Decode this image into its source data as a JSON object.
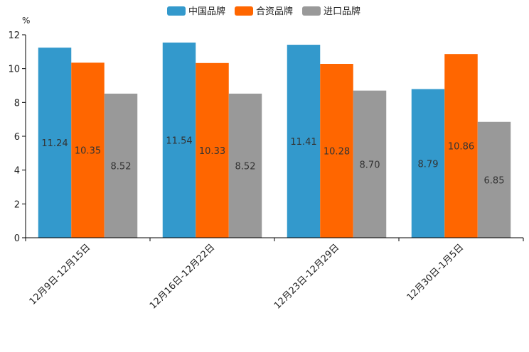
{
  "chart_data": {
    "type": "bar",
    "title": "",
    "ylabel": "%",
    "xlabel": "",
    "ylim": [
      0,
      12
    ],
    "yticks": [
      0,
      2,
      4,
      6,
      8,
      10,
      12
    ],
    "categories": [
      "12月9日-12月15日",
      "12月16日-12月22日",
      "12月23日-12月29日",
      "12月30日-1月5日"
    ],
    "series": [
      {
        "name": "中国品牌",
        "color": "#3399cc",
        "values": [
          11.24,
          11.54,
          11.41,
          8.79
        ],
        "labels": [
          "11.24",
          "11.54",
          "11.41",
          "8.79"
        ]
      },
      {
        "name": "合资品牌",
        "color": "#ff6600",
        "values": [
          10.35,
          10.33,
          10.28,
          10.86
        ],
        "labels": [
          "10.35",
          "10.33",
          "10.28",
          "10.86"
        ]
      },
      {
        "name": "进口品牌",
        "color": "#999999",
        "values": [
          8.52,
          8.52,
          8.7,
          6.85
        ],
        "labels": [
          "8.52",
          "8.52",
          "8.70",
          "6.85"
        ]
      }
    ],
    "legend_position": "top-center",
    "grid": false
  }
}
